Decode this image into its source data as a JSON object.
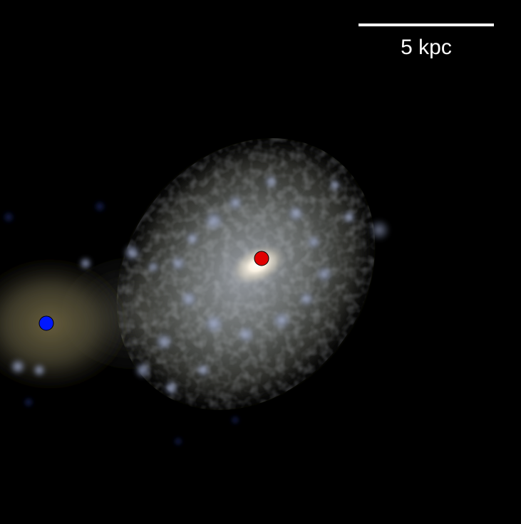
{
  "scale_bar": {
    "label": "5 kpc",
    "color": "#ffffff"
  },
  "markers": [
    {
      "name": "primary-galaxy-center",
      "color": "#e00000"
    },
    {
      "name": "secondary-galaxy-center",
      "color": "#0018ff"
    }
  ],
  "colors": {
    "background": "#000000",
    "stellar_light": "#c8ccd4",
    "old_stars": "#8a7d55",
    "young_star_clumps": "#9aa8d8",
    "faint_blue_knots": "#2a3a8a"
  }
}
